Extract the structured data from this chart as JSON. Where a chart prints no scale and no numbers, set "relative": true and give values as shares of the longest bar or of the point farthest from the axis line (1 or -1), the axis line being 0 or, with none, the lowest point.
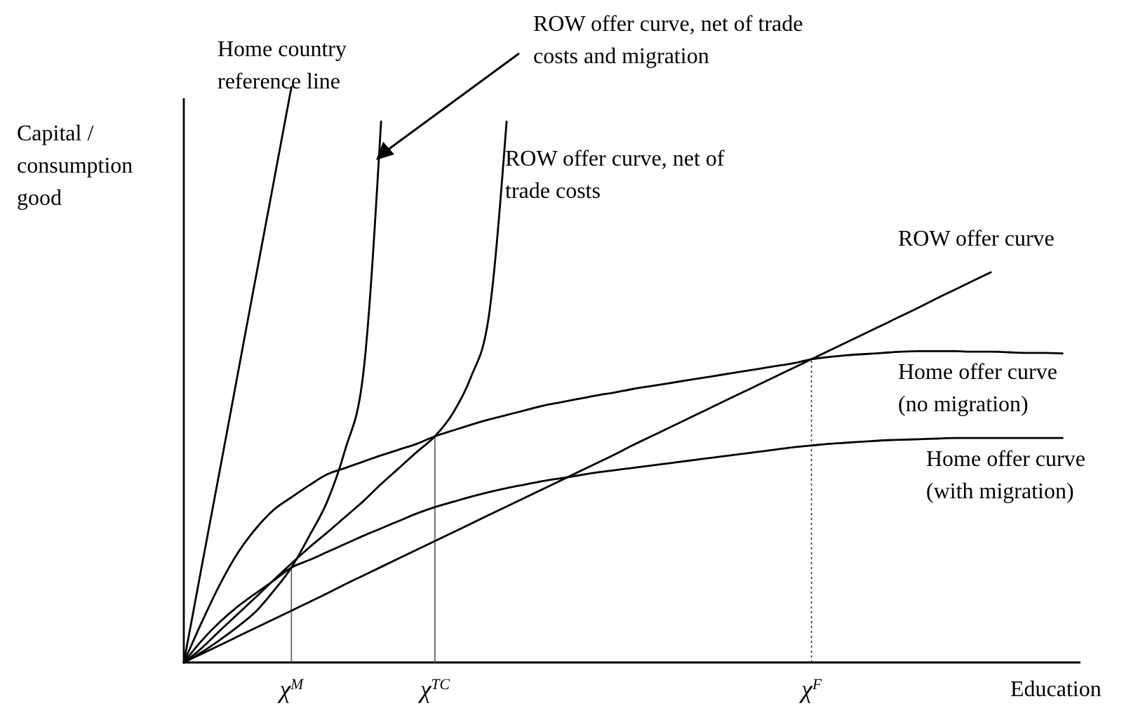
{
  "chart_data": {
    "type": "line",
    "relative": true,
    "ylabel": "Capital / consumption good",
    "xlabel": "Education",
    "categories": [
      null,
      null,
      null,
      null,
      null,
      null,
      "χ$^{M}$",
      null,
      null,
      null,
      null,
      null,
      null,
      null,
      "χ$^{TC}$",
      null,
      null,
      null,
      null,
      null,
      null,
      null,
      null,
      null,
      null,
      null,
      null,
      null,
      null,
      null,
      null,
      null,
      null,
      null,
      null,
      "χ$^{F}$",
      null,
      null,
      null,
      null,
      null,
      null,
      null,
      null,
      null,
      null,
      null,
      null,
      null,
      null,
      null
    ],
    "ref_lines": [
      {
        "axis": "x",
        "value": "χ$^{M}$",
        "color": "#555555",
        "line_style": "solid"
      },
      {
        "axis": "x",
        "value": "χ$^{TC}$",
        "color": "#555555",
        "line_style": "solid"
      },
      {
        "axis": "x",
        "value": "χ$^{F}$",
        "color": "#333333",
        "line_style": "dotted"
      }
    ],
    "series": [
      {
        "name": "Home country reference line",
        "color": "#000000",
        "values": [
          0,
          0.167,
          0.333,
          0.5,
          0.667,
          0.833,
          1,
          null,
          null,
          null,
          null,
          null,
          null,
          null,
          null,
          null,
          null,
          null,
          null,
          null,
          null,
          null,
          null,
          null,
          null,
          null,
          null,
          null,
          null,
          null,
          null,
          null,
          null,
          null,
          null,
          null,
          null,
          null,
          null,
          null,
          null,
          null,
          null,
          null,
          null,
          null,
          null,
          null,
          null,
          null,
          null
        ]
      },
      {
        "name": "ROW offer curve, net of trade costs and migration",
        "color": "#000000",
        "values": [
          0,
          0.018,
          0.039,
          0.062,
          0.088,
          0.124,
          0.165,
          0.22,
          0.28,
          0.37,
          0.5,
          0.94,
          null,
          null,
          null,
          null,
          null,
          null,
          null,
          null,
          null,
          null,
          null,
          null,
          null,
          null,
          null,
          null,
          null,
          null,
          null,
          null,
          null,
          null,
          null,
          null,
          null,
          null,
          null,
          null,
          null,
          null,
          null,
          null,
          null,
          null,
          null,
          null,
          null,
          null,
          null
        ]
      },
      {
        "name": "ROW offer curve, net of trade costs",
        "color": "#000000",
        "values": [
          0,
          0.025,
          0.055,
          0.084,
          0.113,
          0.143,
          0.172,
          0.2,
          0.226,
          0.253,
          0.28,
          0.31,
          0.338,
          0.366,
          0.393,
          0.433,
          0.495,
          0.6,
          0.94,
          null,
          null,
          null,
          null,
          null,
          null,
          null,
          null,
          null,
          null,
          null,
          null,
          null,
          null,
          null,
          null,
          null,
          null,
          null,
          null,
          null,
          null,
          null,
          null,
          null,
          null,
          null,
          null,
          null,
          null,
          null,
          null
        ]
      },
      {
        "name": "ROW offer curve",
        "color": "#000000",
        "values": [
          0,
          0.015,
          0.03,
          0.045,
          0.06,
          0.075,
          0.09,
          0.105,
          0.12,
          0.136,
          0.151,
          0.166,
          0.181,
          0.196,
          0.211,
          0.226,
          0.241,
          0.256,
          0.271,
          0.286,
          0.301,
          0.316,
          0.331,
          0.346,
          0.361,
          0.377,
          0.392,
          0.407,
          0.422,
          0.437,
          0.452,
          0.467,
          0.482,
          0.497,
          0.512,
          0.527,
          0.542,
          0.557,
          0.572,
          0.587,
          0.602,
          0.617,
          0.633,
          0.648,
          0.663,
          0.678,
          null,
          null,
          null,
          null,
          null
        ]
      },
      {
        "name": "Home offer curve (no migration)",
        "color": "#000000",
        "values": [
          0,
          0.07,
          0.135,
          0.19,
          0.232,
          0.265,
          0.287,
          0.308,
          0.327,
          0.338,
          0.349,
          0.36,
          0.37,
          0.38,
          0.393,
          0.403,
          0.413,
          0.422,
          0.43,
          0.438,
          0.446,
          0.452,
          0.458,
          0.464,
          0.469,
          0.475,
          0.48,
          0.485,
          0.49,
          0.495,
          0.5,
          0.505,
          0.51,
          0.515,
          0.52,
          0.527,
          0.531,
          0.534,
          0.536,
          0.538,
          0.54,
          0.541,
          0.541,
          0.541,
          0.54,
          0.54,
          0.539,
          0.538,
          0.538,
          0.537,
          null
        ]
      },
      {
        "name": "Home offer curve (with migration)",
        "color": "#000000",
        "values": [
          0,
          0.038,
          0.07,
          0.097,
          0.12,
          0.142,
          0.165,
          0.178,
          0.192,
          0.206,
          0.22,
          0.233,
          0.246,
          0.259,
          0.27,
          0.279,
          0.288,
          0.296,
          0.303,
          0.309,
          0.315,
          0.32,
          0.325,
          0.33,
          0.334,
          0.338,
          0.342,
          0.346,
          0.35,
          0.354,
          0.358,
          0.362,
          0.366,
          0.37,
          0.374,
          0.377,
          0.38,
          0.382,
          0.384,
          0.386,
          0.387,
          0.388,
          0.389,
          0.39,
          0.39,
          0.39,
          0.39,
          0.39,
          0.39,
          0.39,
          null
        ]
      }
    ]
  }
}
